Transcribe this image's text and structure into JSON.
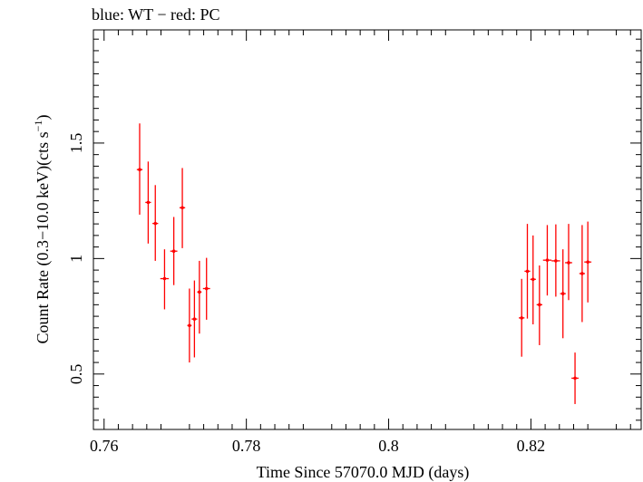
{
  "header_note": "blue: WT − red: PC",
  "chart_data": {
    "type": "scatter",
    "xlabel": "Time Since 57070.0 MJD (days)",
    "ylabel_main": "Count Rate (0.3−10.0 keV)(cts s",
    "ylabel_sup": "−1",
    "ylabel_close": ")",
    "xlim": [
      0.7585,
      0.8355
    ],
    "ylim": [
      0.26,
      1.99
    ],
    "x_ticks": [
      0.76,
      0.78,
      0.8,
      0.82
    ],
    "x_tick_labels": [
      "0.76",
      "0.78",
      "0.8",
      "0.82"
    ],
    "x_minor_ticks": [
      0.762,
      0.764,
      0.766,
      0.768,
      0.772,
      0.774,
      0.776,
      0.778,
      0.782,
      0.784,
      0.786,
      0.788,
      0.792,
      0.794,
      0.796,
      0.798,
      0.802,
      0.804,
      0.806,
      0.808,
      0.812,
      0.814,
      0.816,
      0.818,
      0.822,
      0.824,
      0.826,
      0.828,
      0.832,
      0.834
    ],
    "y_ticks": [
      0.5,
      1.0,
      1.5
    ],
    "y_tick_labels": [
      "0.5",
      "1",
      "1.5"
    ],
    "y_minor_ticks": [
      0.3,
      0.35,
      0.4,
      0.45,
      0.55,
      0.6,
      0.65,
      0.7,
      0.75,
      0.8,
      0.85,
      0.9,
      0.95,
      1.05,
      1.1,
      1.15,
      1.2,
      1.25,
      1.3,
      1.35,
      1.4,
      1.45,
      1.55,
      1.6,
      1.65,
      1.7,
      1.75,
      1.8,
      1.85,
      1.9,
      1.95
    ],
    "series": [
      {
        "color": "#ff0000",
        "points": [
          {
            "x": 0.765,
            "y": 1.385,
            "xerr": 0.0004,
            "ylo": 1.19,
            "yhi": 1.585
          },
          {
            "x": 0.7662,
            "y": 1.243,
            "xerr": 0.0004,
            "ylo": 1.065,
            "yhi": 1.42
          },
          {
            "x": 0.7672,
            "y": 1.152,
            "xerr": 0.0004,
            "ylo": 0.99,
            "yhi": 1.318
          },
          {
            "x": 0.7685,
            "y": 0.913,
            "xerr": 0.0006,
            "ylo": 0.78,
            "yhi": 1.04
          },
          {
            "x": 0.7698,
            "y": 1.032,
            "xerr": 0.0005,
            "ylo": 0.885,
            "yhi": 1.18
          },
          {
            "x": 0.771,
            "y": 1.22,
            "xerr": 0.0004,
            "ylo": 1.045,
            "yhi": 1.392
          },
          {
            "x": 0.772,
            "y": 0.71,
            "xerr": 0.0003,
            "ylo": 0.55,
            "yhi": 0.87
          },
          {
            "x": 0.7727,
            "y": 0.738,
            "xerr": 0.0004,
            "ylo": 0.572,
            "yhi": 0.905
          },
          {
            "x": 0.7734,
            "y": 0.855,
            "xerr": 0.0003,
            "ylo": 0.675,
            "yhi": 0.99
          },
          {
            "x": 0.7744,
            "y": 0.87,
            "xerr": 0.0005,
            "ylo": 0.735,
            "yhi": 1.003
          },
          {
            "x": 0.8187,
            "y": 0.743,
            "xerr": 0.0004,
            "ylo": 0.575,
            "yhi": 0.912
          },
          {
            "x": 0.8195,
            "y": 0.945,
            "xerr": 0.0004,
            "ylo": 0.74,
            "yhi": 1.15
          },
          {
            "x": 0.8203,
            "y": 0.91,
            "xerr": 0.0004,
            "ylo": 0.715,
            "yhi": 1.1
          },
          {
            "x": 0.8212,
            "y": 0.8,
            "xerr": 0.0004,
            "ylo": 0.625,
            "yhi": 0.97
          },
          {
            "x": 0.8223,
            "y": 0.993,
            "xerr": 0.0006,
            "ylo": 0.84,
            "yhi": 1.145
          },
          {
            "x": 0.8235,
            "y": 0.99,
            "xerr": 0.0006,
            "ylo": 0.835,
            "yhi": 1.148
          },
          {
            "x": 0.8245,
            "y": 0.848,
            "xerr": 0.0004,
            "ylo": 0.655,
            "yhi": 1.04
          },
          {
            "x": 0.8253,
            "y": 0.982,
            "xerr": 0.0005,
            "ylo": 0.82,
            "yhi": 1.15
          },
          {
            "x": 0.8262,
            "y": 0.482,
            "xerr": 0.0005,
            "ylo": 0.37,
            "yhi": 0.593
          },
          {
            "x": 0.8272,
            "y": 0.935,
            "xerr": 0.0004,
            "ylo": 0.725,
            "yhi": 1.145
          },
          {
            "x": 0.828,
            "y": 0.985,
            "xerr": 0.0005,
            "ylo": 0.81,
            "yhi": 1.16
          }
        ]
      }
    ]
  }
}
